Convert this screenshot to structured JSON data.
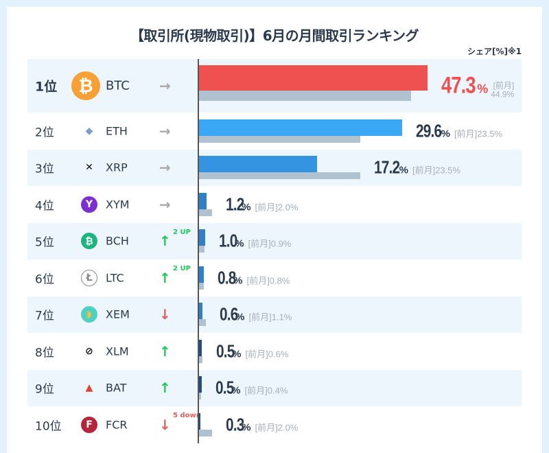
{
  "title": "【取引所(現物取引)】6月の月間取引ランキング",
  "unit_label": "シェア[%]※1",
  "prev_label": "[前月]",
  "colors": {
    "up": "#1ec85a",
    "down": "#e06060",
    "flat": "#a8a8a8",
    "prev_bar": "#b0c2cf",
    "highlight": "#ef5050"
  },
  "rows": [
    {
      "rank": "1位",
      "symbol": "BTC",
      "icon": "bitcoin-icon",
      "trend": "flat",
      "badge": "",
      "share": 47.3,
      "prev": 44.9,
      "share_text": "47.3",
      "prev_text": "44.9%",
      "bar_color": "#ef5050"
    },
    {
      "rank": "2位",
      "symbol": "ETH",
      "icon": "ethereum-icon",
      "trend": "flat",
      "badge": "",
      "share": 29.6,
      "prev": 23.5,
      "share_text": "29.6",
      "prev_text": "23.5%",
      "bar_color": "#3aa8f5"
    },
    {
      "rank": "3位",
      "symbol": "XRP",
      "icon": "xrp-icon",
      "trend": "flat",
      "badge": "",
      "share": 17.2,
      "prev": 23.5,
      "share_text": "17.2",
      "prev_text": "23.5%",
      "bar_color": "#3594e2"
    },
    {
      "rank": "4位",
      "symbol": "XYM",
      "icon": "symbol-icon",
      "trend": "flat",
      "badge": "",
      "share": 1.2,
      "prev": 2.0,
      "share_text": "1.2",
      "prev_text": "2.0%",
      "bar_color": "#2f80c8"
    },
    {
      "rank": "5位",
      "symbol": "BCH",
      "icon": "bitcoin-cash-icon",
      "trend": "up",
      "badge": "2 UP",
      "share": 1.0,
      "prev": 0.9,
      "share_text": "1.0",
      "prev_text": "0.9%",
      "bar_color": "#2f80c8"
    },
    {
      "rank": "6位",
      "symbol": "LTC",
      "icon": "litecoin-icon",
      "trend": "up",
      "badge": "2 UP",
      "share": 0.8,
      "prev": 0.8,
      "share_text": "0.8",
      "prev_text": "0.8%",
      "bar_color": "#2f80c8"
    },
    {
      "rank": "7位",
      "symbol": "XEM",
      "icon": "nem-icon",
      "trend": "down",
      "badge": "",
      "share": 0.6,
      "prev": 1.1,
      "share_text": "0.6",
      "prev_text": "1.1%",
      "bar_color": "#2f80c8"
    },
    {
      "rank": "8位",
      "symbol": "XLM",
      "icon": "stellar-icon",
      "trend": "up",
      "badge": "",
      "share": 0.5,
      "prev": 0.6,
      "share_text": "0.5",
      "prev_text": "0.6%",
      "bar_color": "#1f4f80"
    },
    {
      "rank": "9位",
      "symbol": "BAT",
      "icon": "bat-icon",
      "trend": "up",
      "badge": "",
      "share": 0.5,
      "prev": 0.4,
      "share_text": "0.5",
      "prev_text": "0.4%",
      "bar_color": "#1f4f80"
    },
    {
      "rank": "10位",
      "symbol": "FCR",
      "icon": "fcr-icon",
      "trend": "down",
      "badge": "5 down",
      "share": 0.3,
      "prev": 2.0,
      "share_text": "0.3",
      "prev_text": "2.0%",
      "bar_color": "#1f4f80"
    }
  ]
}
